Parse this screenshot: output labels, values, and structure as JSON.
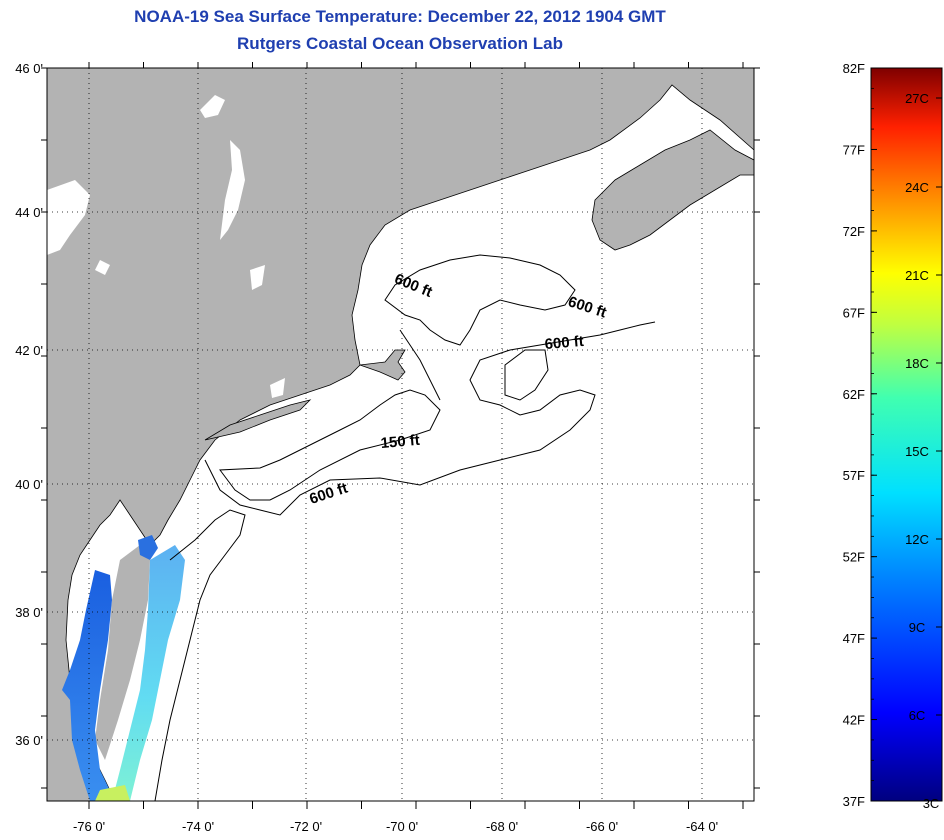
{
  "header": {
    "title_line1": "NOAA-19 Sea Surface Temperature:  December 22, 2012 1904 GMT",
    "title_line2": "Rutgers Coastal Ocean Observation Lab"
  },
  "map": {
    "lat_labels": [
      "46 0'",
      "44 0'",
      "42 0'",
      "40 0'",
      "38 0'",
      "36 0'"
    ],
    "lon_labels": [
      "-76 0'",
      "-74 0'",
      "-72 0'",
      "-70 0'",
      "-68 0'",
      "-66 0'",
      "-64 0'"
    ],
    "contour_labels": [
      "600 ft",
      "600 ft",
      "600 ft",
      "150 ft",
      "600 ft"
    ],
    "colors": {
      "land": "#b3b3b3",
      "ocean": "#ffffff",
      "grid": "#000000"
    }
  },
  "colorbar": {
    "fahrenheit_labels": [
      "82F",
      "77F",
      "72F",
      "67F",
      "62F",
      "57F",
      "52F",
      "47F",
      "42F",
      "37F"
    ],
    "celsius_labels": [
      "27C",
      "24C",
      "21C",
      "18C",
      "15C",
      "12C",
      "9C",
      "6C",
      "3C"
    ]
  }
}
